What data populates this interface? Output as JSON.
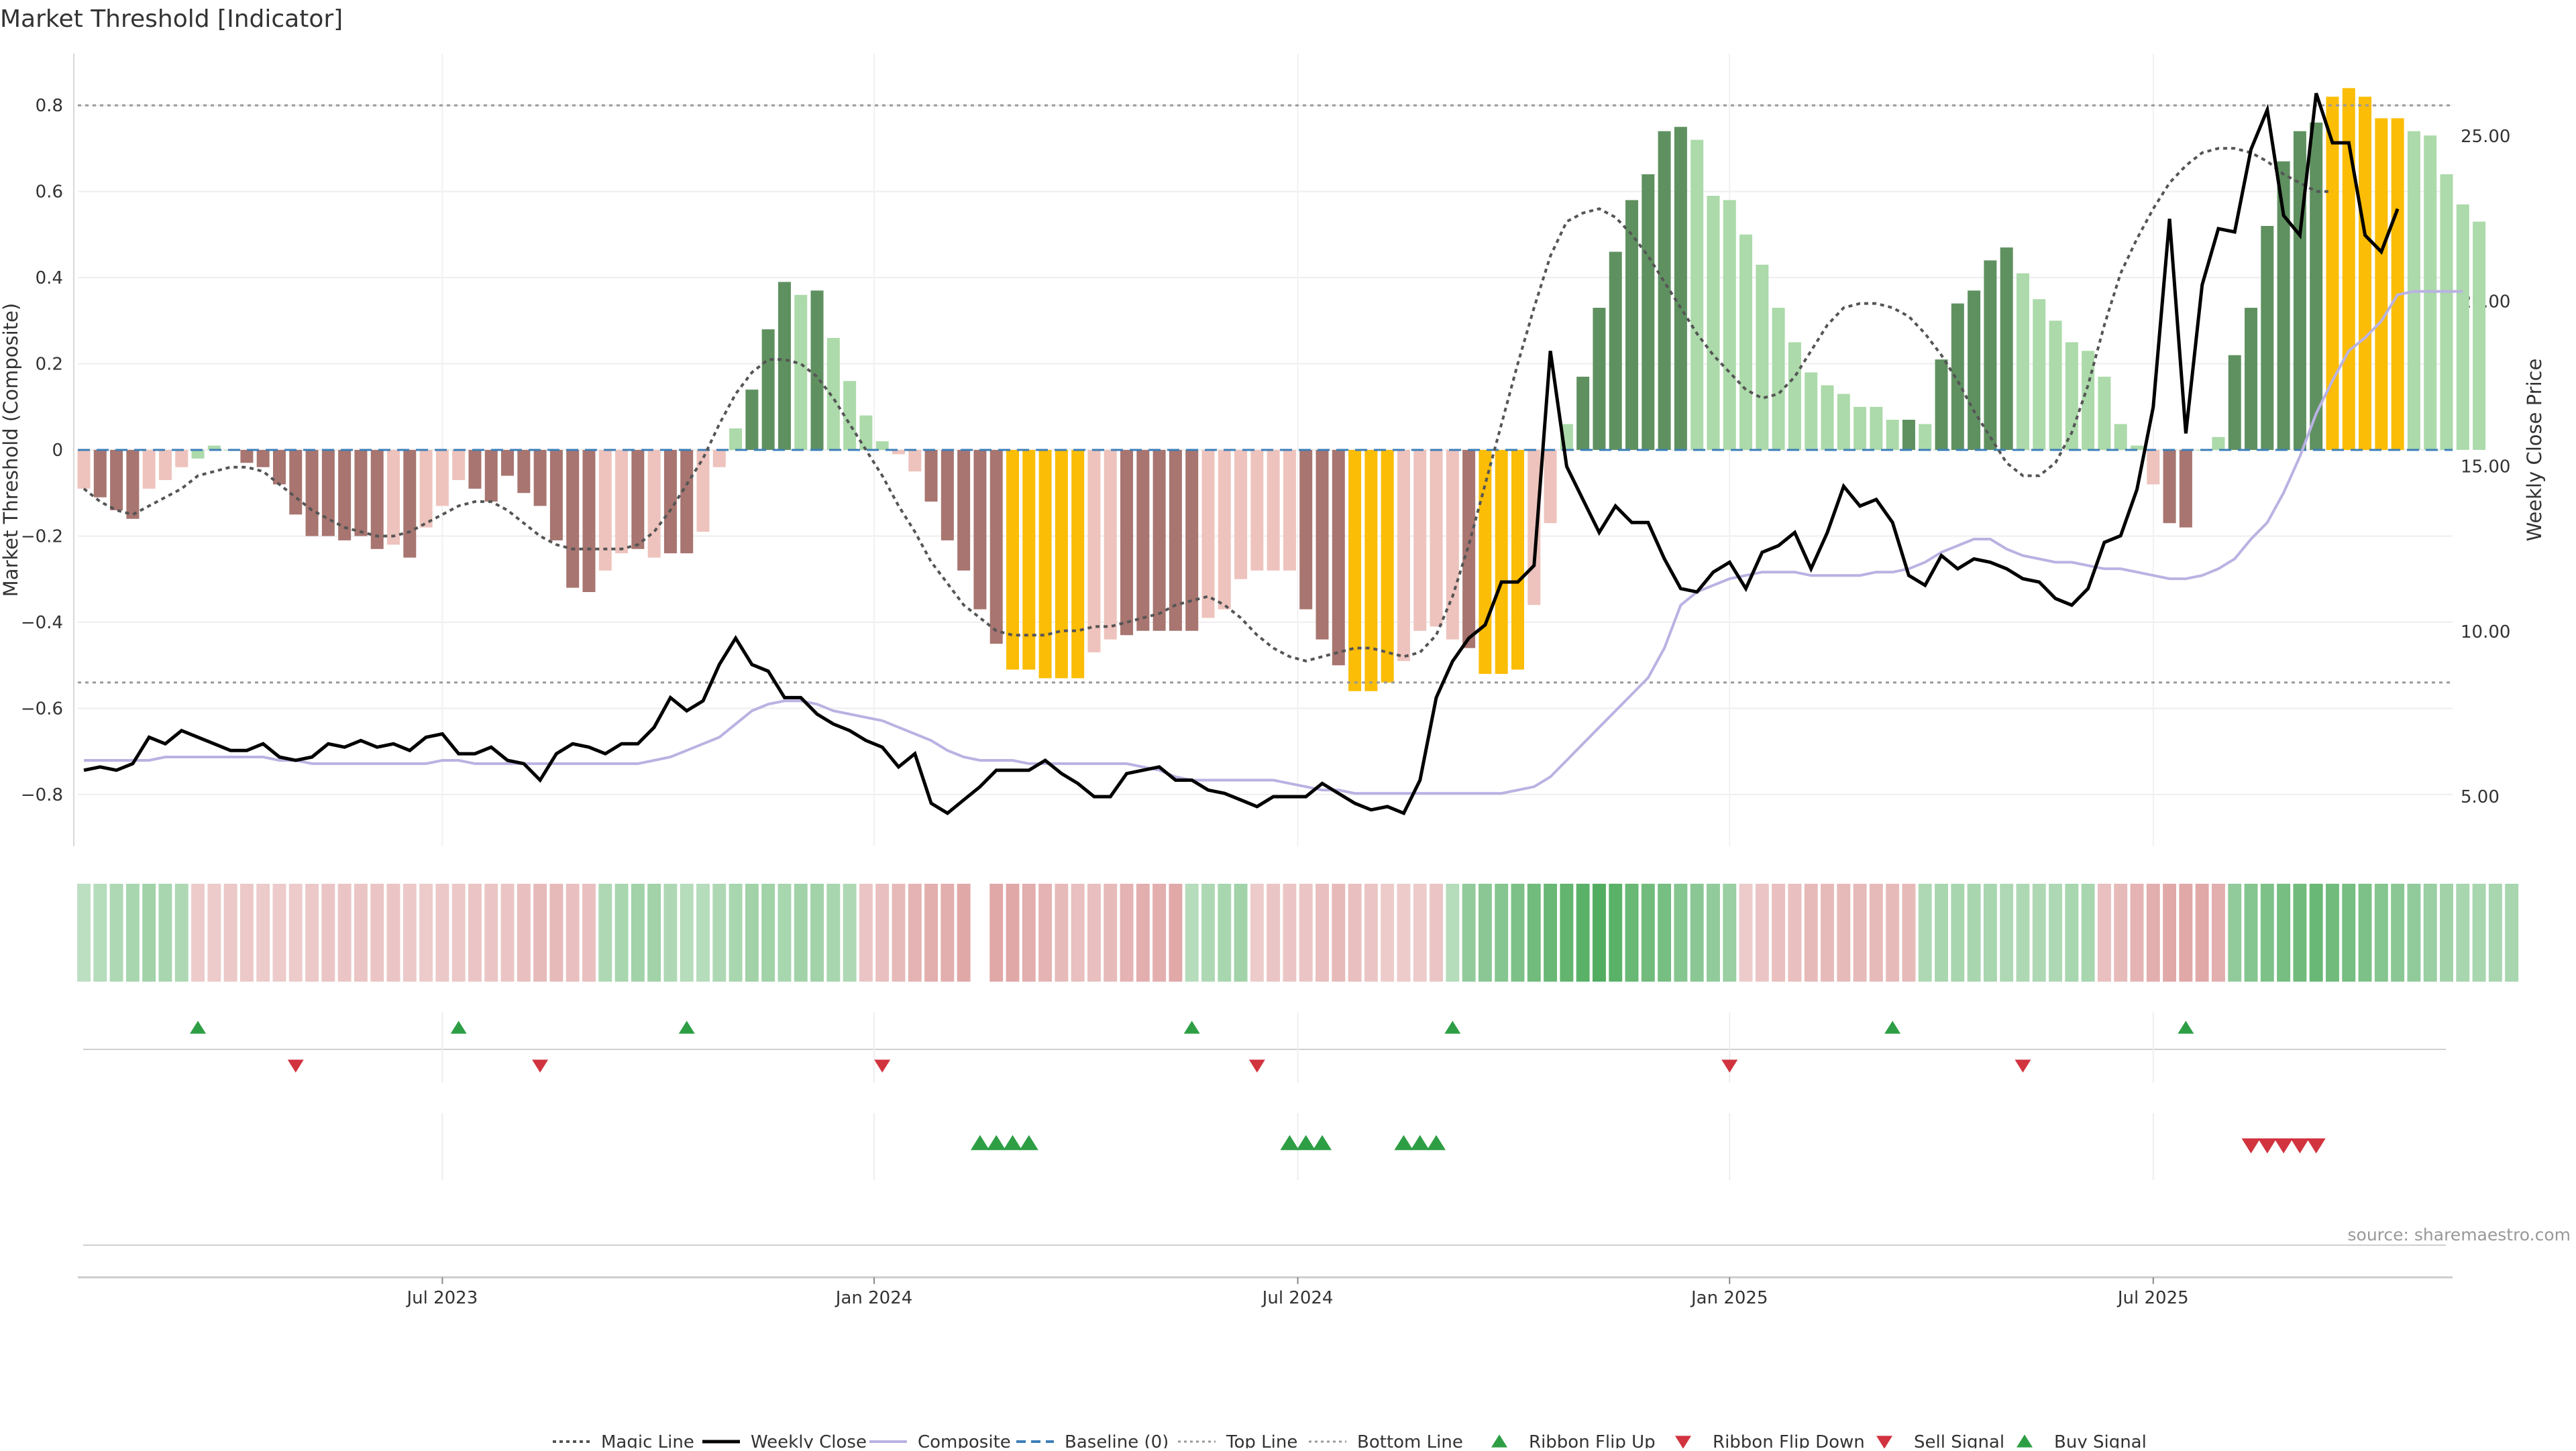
{
  "title": "Market Threshold [Indicator]",
  "source": "source: sharemaestro.com",
  "colors": {
    "bear_dark": "#a87570",
    "bear_light": "#eec3bd",
    "bull_dark": "#5f9160",
    "bull_light": "#acdaaa",
    "extreme": "#fbbd05",
    "weekly_close": "#000000",
    "composite": "#b9b2e2",
    "magic": "#555555",
    "baseline": "#3d7fb8",
    "threshold": "#999999",
    "buy": "#2e9e45",
    "sell": "#d1333f"
  },
  "chart_data": {
    "type": "bar",
    "title": "Market Threshold [Indicator]",
    "ylabel": "Market Threshold (Composite)",
    "y2label": "Weekly Close Price",
    "ylim": [
      -0.92,
      0.92
    ],
    "y2lim": [
      3.5,
      27.5
    ],
    "yticks": [
      -0.8,
      -0.6,
      -0.4,
      -0.2,
      0,
      0.2,
      0.4,
      0.6,
      0.8
    ],
    "ytick_labels": [
      "−0.8",
      "−0.6",
      "−0.4",
      "−0.2",
      "0",
      "0.2",
      "0.4",
      "0.6",
      "0.8"
    ],
    "y2ticks": [
      5,
      10,
      15,
      20,
      25
    ],
    "y2tick_labels": [
      "5.00",
      "10.00",
      "15.00",
      "20.00",
      "25.00"
    ],
    "top_line": 0.8,
    "bottom_line": -0.54,
    "xlim": [
      0,
      146
    ],
    "xticks": [
      22,
      48.5,
      74.5,
      101,
      127
    ],
    "xtick_labels": [
      "Jul 2023",
      "Jan 2024",
      "Jul 2024",
      "Jan 2025",
      "Jul 2025"
    ],
    "bars": [
      -0.09,
      -0.11,
      -0.14,
      -0.16,
      -0.09,
      -0.07,
      -0.04,
      -0.02,
      0.01,
      0,
      -0.03,
      -0.04,
      -0.08,
      -0.15,
      -0.2,
      -0.2,
      -0.21,
      -0.2,
      -0.23,
      -0.22,
      -0.25,
      -0.18,
      -0.13,
      -0.07,
      -0.09,
      -0.12,
      -0.06,
      -0.1,
      -0.13,
      -0.21,
      -0.32,
      -0.33,
      -0.28,
      -0.24,
      -0.23,
      -0.25,
      -0.24,
      -0.24,
      -0.19,
      -0.04,
      0.05,
      0.14,
      0.28,
      0.39,
      0.36,
      0.37,
      0.26,
      0.16,
      0.08,
      0.02,
      -0.01,
      -0.05,
      -0.12,
      -0.21,
      -0.28,
      -0.37,
      -0.45,
      -0.51,
      -0.51,
      -0.53,
      -0.53,
      -0.53,
      -0.47,
      -0.44,
      -0.43,
      -0.42,
      -0.42,
      -0.42,
      -0.42,
      -0.39,
      -0.37,
      -0.3,
      -0.28,
      -0.28,
      -0.28,
      -0.37,
      -0.44,
      -0.5,
      -0.56,
      -0.56,
      -0.54,
      -0.49,
      -0.42,
      -0.41,
      -0.44,
      -0.46,
      -0.52,
      -0.52,
      -0.51,
      -0.36,
      -0.17,
      0.06,
      0.17,
      0.33,
      0.46,
      0.58,
      0.64,
      0.74,
      0.75,
      0.72,
      0.59,
      0.58,
      0.5,
      0.43,
      0.33,
      0.25,
      0.18,
      0.15,
      0.13,
      0.1,
      0.1,
      0.07,
      0.07,
      0.06,
      0.21,
      0.34,
      0.37,
      0.44,
      0.47,
      0.41,
      0.35,
      0.3,
      0.25,
      0.23,
      0.17,
      0.06,
      0.01,
      -0.08,
      -0.17,
      -0.18,
      0,
      0.03,
      0.22,
      0.33,
      0.52,
      0.67,
      0.74,
      0.76,
      0.82,
      0.84,
      0.82,
      0.77,
      0.77,
      0.74,
      0.73,
      0.64,
      0.57,
      0.53
    ],
    "bar_colors": [
      "bear_light",
      "bear_dark",
      "bear_dark",
      "bear_dark",
      "bear_light",
      "bear_light",
      "bear_light",
      "bull_light",
      "bull_light",
      "bull_light",
      "bear_dark",
      "bear_dark",
      "bear_dark",
      "bear_dark",
      "bear_dark",
      "bear_dark",
      "bear_dark",
      "bear_dark",
      "bear_dark",
      "bear_light",
      "bear_dark",
      "bear_light",
      "bear_light",
      "bear_light",
      "bear_dark",
      "bear_dark",
      "bear_dark",
      "bear_dark",
      "bear_dark",
      "bear_dark",
      "bear_dark",
      "bear_dark",
      "bear_light",
      "bear_light",
      "bear_dark",
      "bear_light",
      "bear_dark",
      "bear_dark",
      "bear_light",
      "bear_light",
      "bull_light",
      "bull_dark",
      "bull_dark",
      "bull_dark",
      "bull_light",
      "bull_dark",
      "bull_light",
      "bull_light",
      "bull_light",
      "bull_light",
      "bear_light",
      "bear_light",
      "bear_dark",
      "bear_dark",
      "bear_dark",
      "bear_dark",
      "bear_dark",
      "extreme",
      "extreme",
      "extreme",
      "extreme",
      "extreme",
      "bear_light",
      "bear_light",
      "bear_dark",
      "bear_dark",
      "bear_dark",
      "bear_dark",
      "bear_dark",
      "bear_light",
      "bear_light",
      "bear_light",
      "bear_light",
      "bear_light",
      "bear_light",
      "bear_dark",
      "bear_dark",
      "bear_dark",
      "extreme",
      "extreme",
      "extreme",
      "bear_light",
      "bear_light",
      "bear_light",
      "bear_light",
      "bear_dark",
      "extreme",
      "extreme",
      "extreme",
      "bear_light",
      "bear_light",
      "bull_light",
      "bull_dark",
      "bull_dark",
      "bull_dark",
      "bull_dark",
      "bull_dark",
      "bull_dark",
      "bull_dark",
      "bull_light",
      "bull_light",
      "bull_light",
      "bull_light",
      "bull_light",
      "bull_light",
      "bull_light",
      "bull_light",
      "bull_light",
      "bull_light",
      "bull_light",
      "bull_light",
      "bull_light",
      "bull_dark",
      "bull_light",
      "bull_dark",
      "bull_dark",
      "bull_dark",
      "bull_dark",
      "bull_dark",
      "bull_light",
      "bull_light",
      "bull_light",
      "bull_light",
      "bull_light",
      "bull_light",
      "bull_light",
      "bull_light",
      "bear_light",
      "bear_dark",
      "bear_dark",
      "bull_light",
      "bull_light",
      "bull_dark",
      "bull_dark",
      "bull_dark",
      "bull_dark",
      "bull_dark",
      "bull_dark",
      "extreme",
      "extreme",
      "extreme",
      "extreme",
      "extreme",
      "bull_light",
      "bull_light",
      "bull_light",
      "bull_light",
      "bull_light"
    ],
    "weekly_close": [
      5.8,
      5.9,
      5.8,
      6,
      6.8,
      6.6,
      7,
      6.8,
      6.6,
      6.4,
      6.4,
      6.6,
      6.2,
      6.1,
      6.2,
      6.6,
      6.5,
      6.7,
      6.5,
      6.6,
      6.4,
      6.8,
      6.9,
      6.3,
      6.3,
      6.5,
      6.1,
      6,
      5.5,
      6.3,
      6.6,
      6.5,
      6.3,
      6.6,
      6.6,
      7.1,
      8,
      7.6,
      7.9,
      9,
      9.8,
      9,
      8.8,
      8,
      8,
      7.5,
      7.2,
      7,
      6.7,
      6.5,
      5.9,
      6.3,
      4.8,
      4.5,
      4.9,
      5.3,
      5.8,
      5.8,
      5.8,
      6.1,
      5.7,
      5.4,
      5,
      5,
      5.7,
      5.8,
      5.9,
      5.5,
      5.5,
      5.2,
      5.1,
      4.9,
      4.7,
      5,
      5,
      5,
      5.4,
      5.1,
      4.8,
      4.6,
      4.7,
      4.5,
      5.5,
      8,
      9.1,
      9.8,
      10.2,
      11.5,
      11.5,
      12,
      18.5,
      15,
      14,
      13,
      13.8,
      13.3,
      13.3,
      12.2,
      11.3,
      11.2,
      11.8,
      12.1,
      11.3,
      12.4,
      12.6,
      13,
      11.9,
      13,
      14.4,
      13.8,
      14,
      13.3,
      11.7,
      11.4,
      12.3,
      11.9,
      12.2,
      12.1,
      11.9,
      11.6,
      11.5,
      11,
      10.8,
      11.3,
      12.7,
      12.9,
      14.3,
      16.8,
      22.5,
      16,
      20.5,
      22.2,
      22.1,
      24.6,
      25.8,
      22.6,
      22,
      26.3,
      24.8,
      24.8,
      22,
      21.5,
      22.8
    ],
    "composite": [
      6.1,
      6.1,
      6.1,
      6.1,
      6.1,
      6.2,
      6.2,
      6.2,
      6.2,
      6.2,
      6.2,
      6.2,
      6.1,
      6.1,
      6,
      6,
      6,
      6,
      6,
      6,
      6,
      6,
      6.1,
      6.1,
      6,
      6,
      6,
      6,
      6,
      6,
      6,
      6,
      6,
      6,
      6,
      6.1,
      6.2,
      6.4,
      6.6,
      6.8,
      7.2,
      7.6,
      7.8,
      7.9,
      7.9,
      7.8,
      7.6,
      7.5,
      7.4,
      7.3,
      7.1,
      6.9,
      6.7,
      6.4,
      6.2,
      6.1,
      6.1,
      6.1,
      6,
      6,
      6,
      6,
      6,
      6,
      6,
      5.9,
      5.8,
      5.6,
      5.5,
      5.5,
      5.5,
      5.5,
      5.5,
      5.5,
      5.4,
      5.3,
      5.2,
      5.2,
      5.1,
      5.1,
      5.1,
      5.1,
      5.1,
      5.1,
      5.1,
      5.1,
      5.1,
      5.1,
      5.2,
      5.3,
      5.6,
      6.1,
      6.6,
      7.1,
      7.6,
      8.1,
      8.6,
      9.5,
      10.8,
      11.2,
      11.4,
      11.6,
      11.7,
      11.8,
      11.8,
      11.8,
      11.7,
      11.7,
      11.7,
      11.7,
      11.8,
      11.8,
      11.9,
      12.1,
      12.4,
      12.6,
      12.8,
      12.8,
      12.5,
      12.3,
      12.2,
      12.1,
      12.1,
      12,
      11.9,
      11.9,
      11.8,
      11.7,
      11.6,
      11.6,
      11.7,
      11.9,
      12.2,
      12.8,
      13.3,
      14.2,
      15.3,
      16.6,
      17.6,
      18.5,
      18.9,
      19.4,
      20.2,
      20.3,
      20.3,
      20.3,
      20.3
    ],
    "magic": [
      -0.09,
      -0.12,
      -0.14,
      -0.15,
      -0.13,
      -0.11,
      -0.09,
      -0.06,
      -0.05,
      -0.04,
      -0.04,
      -0.05,
      -0.08,
      -0.11,
      -0.14,
      -0.16,
      -0.18,
      -0.19,
      -0.2,
      -0.2,
      -0.19,
      -0.17,
      -0.15,
      -0.13,
      -0.12,
      -0.12,
      -0.14,
      -0.17,
      -0.2,
      -0.22,
      -0.23,
      -0.23,
      -0.23,
      -0.23,
      -0.22,
      -0.19,
      -0.14,
      -0.08,
      -0.02,
      0.06,
      0.13,
      0.18,
      0.21,
      0.21,
      0.2,
      0.17,
      0.12,
      0.06,
      0,
      -0.06,
      -0.13,
      -0.19,
      -0.26,
      -0.31,
      -0.36,
      -0.39,
      -0.42,
      -0.43,
      -0.43,
      -0.43,
      -0.42,
      -0.42,
      -0.41,
      -0.41,
      -0.4,
      -0.39,
      -0.38,
      -0.36,
      -0.35,
      -0.34,
      -0.36,
      -0.39,
      -0.43,
      -0.46,
      -0.48,
      -0.49,
      -0.48,
      -0.47,
      -0.46,
      -0.46,
      -0.47,
      -0.48,
      -0.47,
      -0.43,
      -0.34,
      -0.22,
      -0.08,
      0.06,
      0.2,
      0.33,
      0.45,
      0.53,
      0.55,
      0.56,
      0.54,
      0.5,
      0.45,
      0.39,
      0.33,
      0.27,
      0.22,
      0.18,
      0.14,
      0.12,
      0.13,
      0.17,
      0.23,
      0.29,
      0.33,
      0.34,
      0.34,
      0.33,
      0.31,
      0.27,
      0.22,
      0.16,
      0.09,
      0.03,
      -0.03,
      -0.06,
      -0.06,
      -0.03,
      0.04,
      0.15,
      0.29,
      0.41,
      0.49,
      0.56,
      0.62,
      0.66,
      0.69,
      0.7,
      0.7,
      0.69,
      0.67,
      0.64,
      0.62,
      0.6,
      0.6
    ],
    "ribbon": [
      0.15,
      0.2,
      0.25,
      0.3,
      0.35,
      0.3,
      0.25,
      -0.2,
      -0.2,
      -0.22,
      -0.22,
      -0.2,
      -0.2,
      -0.2,
      -0.22,
      -0.25,
      -0.25,
      -0.25,
      -0.25,
      -0.25,
      -0.22,
      -0.2,
      -0.22,
      -0.22,
      -0.25,
      -0.25,
      -0.25,
      -0.3,
      -0.35,
      -0.35,
      -0.3,
      -0.3,
      0.25,
      0.3,
      0.35,
      0.35,
      0.25,
      0.2,
      0.2,
      0.25,
      0.3,
      0.35,
      0.35,
      0.3,
      0.35,
      0.35,
      0.3,
      0.25,
      -0.25,
      -0.3,
      -0.35,
      -0.4,
      -0.45,
      -0.45,
      -0.5,
      null,
      -0.5,
      -0.5,
      -0.45,
      -0.4,
      -0.35,
      -0.3,
      -0.3,
      -0.35,
      -0.4,
      -0.45,
      -0.45,
      -0.5,
      0.2,
      0.25,
      0.3,
      0.35,
      -0.2,
      -0.25,
      -0.25,
      -0.25,
      -0.3,
      -0.35,
      -0.3,
      -0.25,
      -0.2,
      -0.2,
      -0.2,
      -0.25,
      0.2,
      0.45,
      0.5,
      0.55,
      0.6,
      0.7,
      0.75,
      0.8,
      0.85,
      0.9,
      0.85,
      0.75,
      0.7,
      0.65,
      0.55,
      0.5,
      0.45,
      0.4,
      -0.2,
      -0.25,
      -0.3,
      -0.3,
      -0.35,
      -0.35,
      -0.35,
      -0.35,
      -0.35,
      -0.35,
      -0.35,
      0.25,
      0.3,
      0.3,
      0.3,
      0.3,
      0.25,
      0.25,
      0.25,
      0.25,
      0.3,
      0.3,
      -0.3,
      -0.35,
      -0.4,
      -0.45,
      -0.5,
      -0.5,
      -0.5,
      -0.45,
      0.45,
      0.55,
      0.6,
      0.65,
      0.7,
      0.75,
      0.7,
      0.65,
      0.6,
      0.55,
      0.5,
      0.45,
      0.4,
      0.35,
      0.3,
      0.3,
      0.3,
      0.3
    ],
    "ribbon_flip_up": [
      7,
      23,
      37,
      68,
      84,
      111,
      129
    ],
    "ribbon_flip_down": [
      13,
      28,
      49,
      72,
      101,
      119
    ],
    "buy_signal": [
      55,
      56,
      57,
      58,
      74,
      75,
      76,
      81,
      82,
      83
    ],
    "sell_signal": [
      133,
      134,
      135,
      136,
      137
    ],
    "legend": [
      "Magic Line",
      "Weekly Close",
      "Composite",
      "Baseline (0)",
      "Top Line",
      "Bottom Line",
      "Ribbon Flip Up",
      "Ribbon Flip Down",
      "Sell Signal",
      "Buy Signal"
    ],
    "legend_position": "bottom-center",
    "grid": true
  }
}
